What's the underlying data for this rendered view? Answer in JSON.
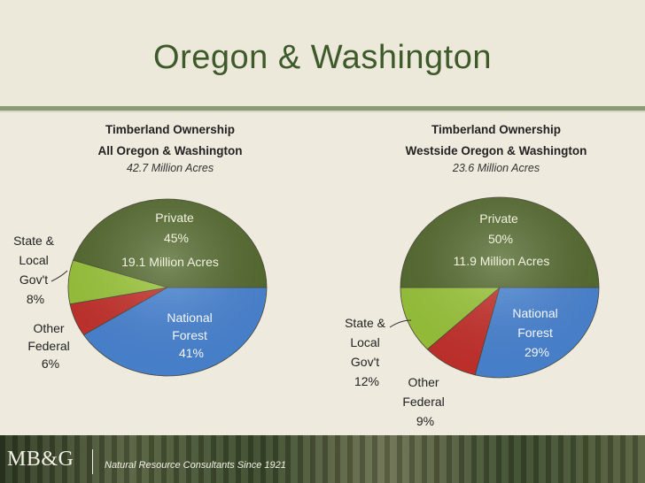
{
  "title": "Oregon & Washington",
  "footer": {
    "logo": "MB&G",
    "tagline": "Natural Resource Consultants Since 1921"
  },
  "colors": {
    "private": "#556b2f",
    "national_forest": "#4a86d6",
    "other_federal": "#c8312c",
    "state_local": "#9cc83a",
    "title": "#3e5a2a"
  },
  "chart_data": [
    {
      "type": "pie",
      "title": "Timberland Ownership",
      "subtitle": "All Oregon & Washington",
      "total": "42.7 Million Acres",
      "slices": [
        {
          "label": "Private",
          "value": 45,
          "pct_label": "45%",
          "note": "19.1 Million Acres"
        },
        {
          "label": "National Forest",
          "value": 41,
          "pct_label": "41%"
        },
        {
          "label": "Other Federal",
          "value": 6,
          "pct_label": "6%"
        },
        {
          "label": "State & Local Gov't",
          "value": 8,
          "pct_label": "8%"
        }
      ]
    },
    {
      "type": "pie",
      "title": "Timberland Ownership",
      "subtitle": "Westside Oregon & Washington",
      "total": "23.6 Million Acres",
      "slices": [
        {
          "label": "Private",
          "value": 50,
          "pct_label": "50%",
          "note": "11.9 Million Acres"
        },
        {
          "label": "National Forest",
          "value": 29,
          "pct_label": "29%"
        },
        {
          "label": "Other Federal",
          "value": 9,
          "pct_label": "9%"
        },
        {
          "label": "State & Local Gov't",
          "value": 12,
          "pct_label": "12%"
        }
      ]
    }
  ],
  "labels": {
    "left": {
      "private": [
        "Private",
        "45%"
      ],
      "private_note": "19.1 Million Acres",
      "national_forest": [
        "National",
        "Forest",
        "41%"
      ],
      "other_federal": [
        "Other",
        "Federal",
        "6%"
      ],
      "state_local": [
        "State &",
        "Local",
        "Gov't",
        "8%"
      ]
    },
    "right": {
      "private": [
        "Private",
        "50%"
      ],
      "private_note": "11.9 Million Acres",
      "national_forest": [
        "National",
        "Forest",
        "29%"
      ],
      "other_federal": [
        "Other",
        "Federal",
        "9%"
      ],
      "state_local": [
        "State &",
        "Local",
        "Gov't",
        "12%"
      ]
    }
  }
}
